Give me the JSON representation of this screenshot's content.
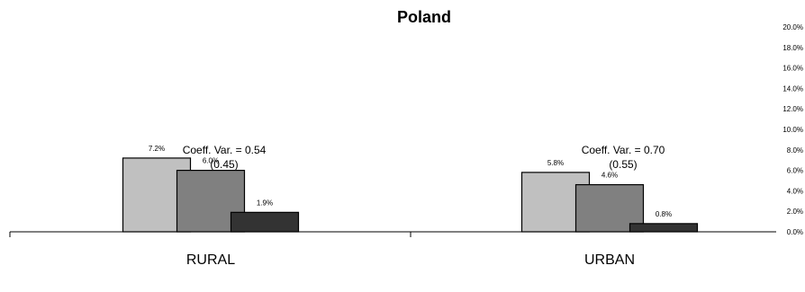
{
  "chart_data": {
    "type": "bar",
    "title": "Poland",
    "categories": [
      "RURAL",
      "URBAN"
    ],
    "series": [
      {
        "values": [
          7.2,
          5.8
        ],
        "color": "#c0c0c0"
      },
      {
        "values": [
          6.0,
          4.6
        ],
        "color": "#808080"
      },
      {
        "values": [
          1.9,
          0.8
        ],
        "color": "#333333"
      }
    ],
    "data_labels": [
      [
        "7.2%",
        "6.0%",
        "1.9%"
      ],
      [
        "5.8%",
        "4.6%",
        "0.8%"
      ]
    ],
    "annotations": [
      {
        "line1": "Coeff. Var. = 0.54",
        "line2": "(0.45)"
      },
      {
        "line1": "Coeff. Var. = 0.70",
        "line2": "(0.55)"
      }
    ],
    "yticks": [
      "0.0%",
      "2.0%",
      "4.0%",
      "6.0%",
      "8.0%",
      "10.0%",
      "12.0%",
      "14.0%",
      "16.0%",
      "18.0%",
      "20.0%"
    ],
    "ylim": [
      0,
      20
    ],
    "yaxis_position": "right",
    "legend": "none",
    "grid": false
  }
}
